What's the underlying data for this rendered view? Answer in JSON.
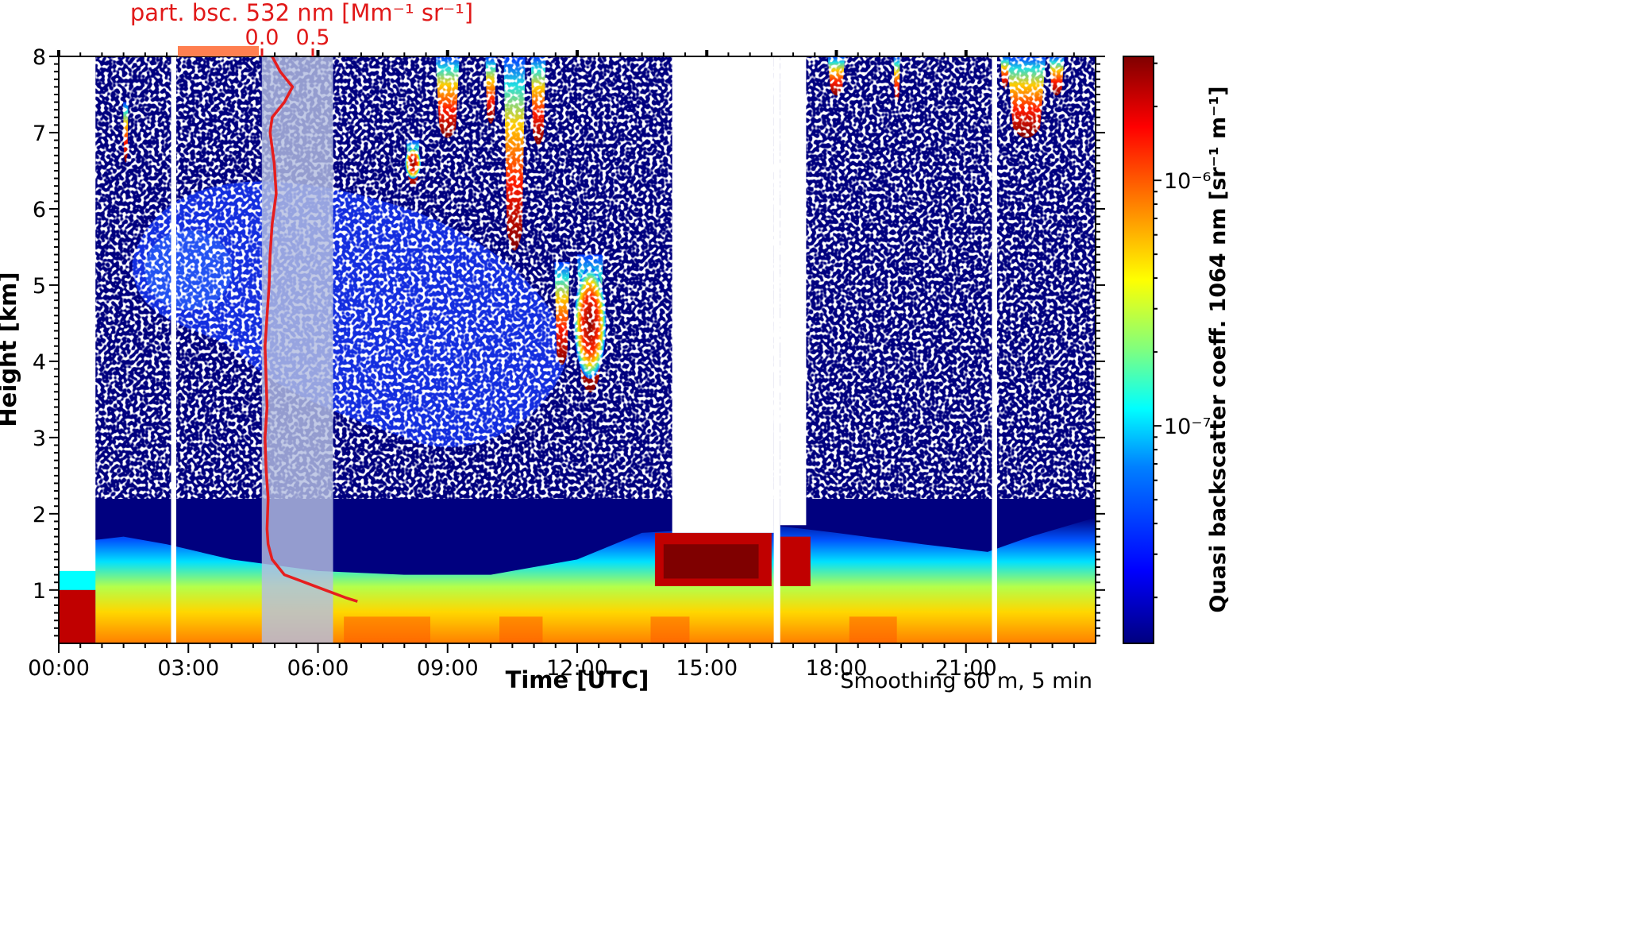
{
  "figure": {
    "title": "part. bsc. 532 nm [Mm⁻¹ sr⁻¹]",
    "note": "Smoothing 60 m, 5 min",
    "xlabel": "Time [UTC]",
    "ylabel": "Height [km]",
    "colorbar_label": "Quasi backscatter coeff. 1064 nm [sr⁻¹ m⁻¹]"
  },
  "chart_data": {
    "type": "heatmap",
    "x_axis": {
      "label": "Time [UTC]",
      "range_hours": [
        0,
        24
      ],
      "ticks": [
        {
          "v": 0,
          "label": "00:00"
        },
        {
          "v": 3,
          "label": "03:00"
        },
        {
          "v": 6,
          "label": "06:00"
        },
        {
          "v": 9,
          "label": "09:00"
        },
        {
          "v": 12,
          "label": "12:00"
        },
        {
          "v": 15,
          "label": "15:00"
        },
        {
          "v": 18,
          "label": "18:00"
        },
        {
          "v": 21,
          "label": "21:00"
        }
      ]
    },
    "y_axis": {
      "label": "Height [km]",
      "range_km": [
        0.3,
        8
      ],
      "ticks": [
        {
          "v": 1,
          "label": "1"
        },
        {
          "v": 2,
          "label": "2"
        },
        {
          "v": 3,
          "label": "3"
        },
        {
          "v": 4,
          "label": "4"
        },
        {
          "v": 5,
          "label": "5"
        },
        {
          "v": 6,
          "label": "6"
        },
        {
          "v": 7,
          "label": "7"
        },
        {
          "v": 8,
          "label": "8"
        }
      ]
    },
    "top_axis": {
      "label": "part. bsc. 532 nm [Mm⁻¹ sr⁻¹]",
      "ticks": [
        {
          "v": 0.0,
          "label": "0.0"
        },
        {
          "v": 0.5,
          "label": "0.5"
        }
      ]
    },
    "colorbar": {
      "label": "Quasi backscatter coeff. 1064 nm [sr⁻¹ m⁻¹]",
      "scale": "log",
      "range": [
        1.3e-08,
        3.2e-06
      ],
      "colormap": [
        "#00007f",
        "#0000ff",
        "#007fff",
        "#00ffff",
        "#7fff7f",
        "#ffff00",
        "#ff7f00",
        "#ff0000",
        "#7f0000"
      ],
      "ticks": [
        {
          "v": 1e-07,
          "label": "10⁻⁷"
        },
        {
          "v": 1e-06,
          "label": "10⁻⁶"
        }
      ]
    },
    "no_data_gaps_hours": [
      [
        0,
        0.85
      ],
      [
        2.6,
        2.72
      ],
      [
        16.55,
        16.7
      ],
      [
        21.6,
        21.72
      ]
    ],
    "clear_sky_gaps": [
      {
        "t": [
          14.2,
          16.55
        ],
        "above_km": 1.75
      },
      {
        "t": [
          16.7,
          17.3
        ],
        "above_km": 1.85
      }
    ],
    "shaded_interval_hours": [
      4.7,
      6.35
    ],
    "colors": {
      "profile_line": "#e61e1e",
      "top_axis_text": "#e11919",
      "shaded_region": "#b4bee1"
    },
    "profile_532": {
      "height_km": [
        8.0,
        7.8,
        7.6,
        7.4,
        7.2,
        7.0,
        6.6,
        6.2,
        5.8,
        5.4,
        5.0,
        4.6,
        4.2,
        3.8,
        3.4,
        3.0,
        2.6,
        2.2,
        1.8,
        1.6,
        1.4,
        1.2,
        1.1,
        1.0,
        0.9,
        0.85
      ],
      "value": [
        0.1,
        0.18,
        0.3,
        0.22,
        0.1,
        0.08,
        0.12,
        0.14,
        0.1,
        0.08,
        0.07,
        0.05,
        0.03,
        0.04,
        0.05,
        0.03,
        0.04,
        0.06,
        0.05,
        0.06,
        0.1,
        0.22,
        0.42,
        0.62,
        0.82,
        0.94
      ]
    }
  }
}
